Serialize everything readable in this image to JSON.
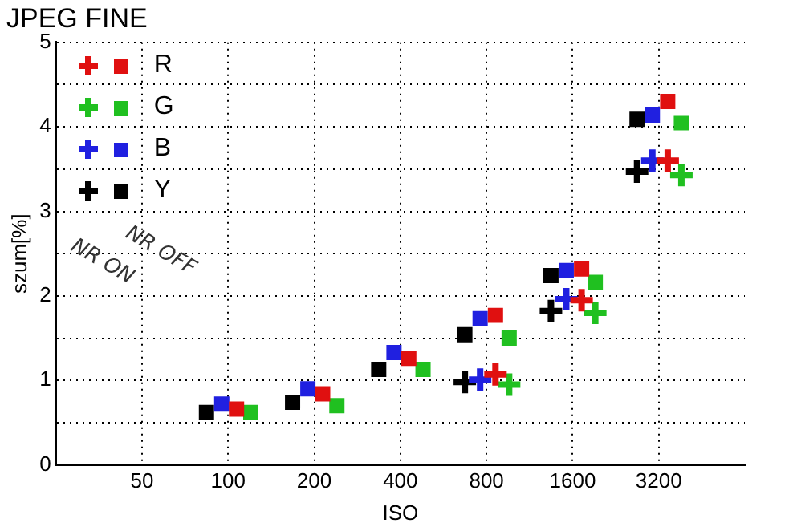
{
  "chart_data": {
    "type": "scatter",
    "title": "JPEG FINE",
    "xlabel": "ISO",
    "ylabel": "szum[%]",
    "log": "x",
    "xlim": [
      25,
      6400
    ],
    "xticks": [
      50,
      100,
      200,
      400,
      800,
      1600,
      3200
    ],
    "ylim": [
      0,
      5
    ],
    "yticks": [
      0,
      {
        "value": 0.5,
        "label": null
      },
      1,
      {
        "value": 1.5,
        "label": null
      },
      2,
      {
        "value": 2.5,
        "label": null
      },
      3,
      {
        "value": 3.5,
        "label": null
      },
      4,
      {
        "value": 4.5,
        "label": null
      },
      5
    ],
    "grid": true,
    "legend": "top left",
    "annotations": [
      "NR ON",
      "NR OFF"
    ],
    "series": [
      {
        "name": "R",
        "color": "#e01010",
        "marker": "cross",
        "x": [
          860,
          1720,
          3440
        ],
        "values": [
          1.07,
          1.95,
          3.6
        ]
      },
      {
        "color": "#e01010",
        "marker": "square",
        "x": [
          107,
          214,
          428,
          860,
          1720,
          3440
        ],
        "values": [
          0.66,
          0.84,
          1.26,
          1.77,
          2.32,
          4.3
        ]
      },
      {
        "name": "G",
        "color": "#20c020",
        "marker": "cross",
        "x": [
          960,
          1920,
          3840
        ],
        "values": [
          0.95,
          1.8,
          3.43
        ]
      },
      {
        "color": "#20c020",
        "marker": "square",
        "x": [
          120,
          240,
          480,
          960,
          1920,
          3840
        ],
        "values": [
          0.62,
          0.7,
          1.13,
          1.5,
          2.16,
          4.05
        ]
      },
      {
        "name": "B",
        "color": "#2020e0",
        "marker": "cross",
        "x": [
          760,
          1520,
          3040
        ],
        "values": [
          1.01,
          1.96,
          3.6
        ]
      },
      {
        "color": "#2020e0",
        "marker": "square",
        "x": [
          95,
          190,
          380,
          760,
          1520,
          3040
        ],
        "values": [
          0.72,
          0.9,
          1.33,
          1.73,
          2.3,
          4.14
        ]
      },
      {
        "name": "Y",
        "color": "#000000",
        "marker": "cross",
        "x": [
          672,
          1344,
          2688
        ],
        "values": [
          0.98,
          1.82,
          3.47
        ]
      },
      {
        "color": "#000000",
        "marker": "square",
        "x": [
          84,
          168,
          336,
          672,
          1344,
          2688
        ],
        "values": [
          0.62,
          0.74,
          1.13,
          1.54,
          2.24,
          4.09
        ]
      }
    ]
  }
}
